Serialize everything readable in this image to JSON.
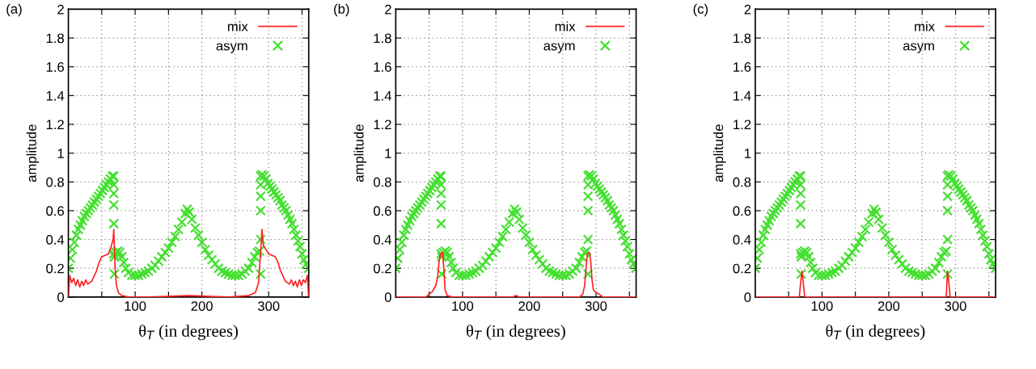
{
  "chart_data": [
    {
      "type": "line",
      "annotations": [
        "(a)"
      ],
      "xlabel": "θ$_{T}$ (in degrees)",
      "ylabel": "amplitude",
      "xlim": [
        0,
        360
      ],
      "ylim": [
        0,
        2
      ],
      "xticks": [
        {
          "value": 50,
          "label": null
        },
        100,
        {
          "value": 150,
          "label": null
        },
        200,
        {
          "value": 250,
          "label": null
        },
        300,
        {
          "value": 350,
          "label": null
        }
      ],
      "yticks": [
        0,
        0.2,
        0.4,
        0.6,
        0.8,
        1,
        1.2,
        1.4,
        1.6,
        1.8,
        2
      ],
      "grid": true,
      "legend": "top right",
      "series": [
        {
          "name": "mix",
          "color": "#ff2020",
          "line_style": "solid",
          "marker": "none",
          "x": [
            0,
            2,
            5,
            8,
            11,
            14,
            17,
            20,
            23,
            26,
            29,
            32,
            35,
            38,
            42,
            46,
            50,
            55,
            60,
            64,
            67,
            68,
            70,
            72,
            75,
            80,
            90,
            120,
            180,
            240,
            270,
            280,
            285,
            288,
            290,
            292,
            296,
            300,
            305,
            310,
            314,
            318,
            322,
            325,
            328,
            331,
            334,
            337,
            340,
            343,
            346,
            349,
            352,
            355,
            358,
            360
          ],
          "values": [
            0,
            0.15,
            0.1,
            0.13,
            0.08,
            0.12,
            0.07,
            0.11,
            0.08,
            0.12,
            0.09,
            0.1,
            0.11,
            0.14,
            0.18,
            0.24,
            0.28,
            0.29,
            0.3,
            0.35,
            0.4,
            0.47,
            0.2,
            0.08,
            0.03,
            0.01,
            0,
            0,
            0.01,
            0,
            0.01,
            0.03,
            0.1,
            0.32,
            0.47,
            0.36,
            0.33,
            0.3,
            0.29,
            0.28,
            0.24,
            0.18,
            0.14,
            0.11,
            0.1,
            0.09,
            0.12,
            0.08,
            0.11,
            0.07,
            0.12,
            0.08,
            0.12,
            0.1,
            0.15,
            0
          ]
        },
        {
          "name": "asym",
          "type": "scatter",
          "color": "#44e030",
          "marker": "cross",
          "x": [
            0,
            3,
            6,
            9,
            12,
            15,
            18,
            21,
            24,
            27,
            30,
            33,
            36,
            39,
            42,
            45,
            48,
            51,
            54,
            57,
            60,
            63,
            66,
            68,
            68,
            68,
            68,
            68,
            68,
            69,
            69,
            71,
            74,
            77,
            80,
            83,
            86,
            90,
            95,
            100,
            105,
            110,
            115,
            120,
            125,
            130,
            135,
            140,
            145,
            150,
            155,
            160,
            165,
            170,
            175,
            178,
            181,
            185,
            190,
            195,
            200,
            205,
            210,
            215,
            220,
            225,
            230,
            235,
            240,
            245,
            250,
            255,
            260,
            265,
            270,
            275,
            279,
            283,
            286,
            288,
            288,
            288,
            288,
            288,
            288,
            290,
            293,
            296,
            299,
            302,
            305,
            308,
            311,
            314,
            317,
            320,
            323,
            326,
            329,
            332,
            335,
            338,
            341,
            344,
            347,
            350,
            353,
            356,
            360
          ],
          "values": [
            0.2,
            0.27,
            0.33,
            0.38,
            0.43,
            0.47,
            0.5,
            0.53,
            0.56,
            0.58,
            0.6,
            0.62,
            0.64,
            0.66,
            0.68,
            0.7,
            0.72,
            0.74,
            0.76,
            0.78,
            0.8,
            0.82,
            0.84,
            0.84,
            0.78,
            0.72,
            0.64,
            0.51,
            0.3,
            0.16,
            0.28,
            0.31,
            0.32,
            0.31,
            0.28,
            0.24,
            0.2,
            0.17,
            0.15,
            0.15,
            0.15,
            0.16,
            0.17,
            0.18,
            0.2,
            0.22,
            0.25,
            0.28,
            0.31,
            0.34,
            0.38,
            0.42,
            0.47,
            0.52,
            0.58,
            0.61,
            0.59,
            0.54,
            0.48,
            0.43,
            0.38,
            0.33,
            0.29,
            0.26,
            0.23,
            0.2,
            0.18,
            0.17,
            0.16,
            0.15,
            0.15,
            0.15,
            0.16,
            0.18,
            0.2,
            0.24,
            0.28,
            0.31,
            0.32,
            0.16,
            0.4,
            0.6,
            0.7,
            0.78,
            0.84,
            0.85,
            0.84,
            0.82,
            0.79,
            0.77,
            0.75,
            0.73,
            0.71,
            0.69,
            0.67,
            0.64,
            0.62,
            0.6,
            0.57,
            0.54,
            0.51,
            0.47,
            0.43,
            0.39,
            0.35,
            0.3,
            0.26,
            0.23,
            0.2
          ]
        }
      ]
    },
    {
      "type": "line",
      "annotations": [
        "(b)"
      ],
      "xlabel": "θ$_{T}$ (in degrees)",
      "ylabel": "amplitude",
      "xlim": [
        0,
        360
      ],
      "ylim": [
        0,
        2
      ],
      "xticks": [
        {
          "value": 50,
          "label": null
        },
        100,
        {
          "value": 150,
          "label": null
        },
        200,
        {
          "value": 250,
          "label": null
        },
        300,
        {
          "value": 350,
          "label": null
        }
      ],
      "yticks": [
        0,
        0.2,
        0.4,
        0.6,
        0.8,
        1,
        1.2,
        1.4,
        1.6,
        1.8,
        2
      ],
      "grid": true,
      "legend": "top right",
      "series": [
        {
          "name": "mix",
          "color": "#ff2020",
          "line_style": "solid",
          "marker": "none",
          "x": [
            0,
            45,
            50,
            55,
            60,
            63,
            65,
            67,
            70,
            72,
            74,
            77,
            85,
            175,
            180,
            185,
            275,
            280,
            283,
            285,
            287,
            290,
            292,
            294,
            296,
            300,
            305,
            310,
            360
          ],
          "values": [
            0,
            0,
            0.02,
            0.04,
            0.08,
            0.15,
            0.25,
            0.3,
            0.31,
            0.2,
            0.05,
            0.01,
            0,
            0,
            0.01,
            0,
            0,
            0.02,
            0.08,
            0.2,
            0.3,
            0.31,
            0.25,
            0.12,
            0.05,
            0.03,
            0.02,
            0,
            0
          ]
        },
        {
          "name": "asym",
          "type": "scatter",
          "color": "#44e030",
          "marker": "cross",
          "x": [
            0,
            3,
            6,
            9,
            12,
            15,
            18,
            21,
            24,
            27,
            30,
            33,
            36,
            39,
            42,
            45,
            48,
            51,
            54,
            57,
            60,
            63,
            66,
            68,
            68,
            68,
            68,
            68,
            68,
            69,
            69,
            71,
            74,
            77,
            80,
            83,
            86,
            90,
            95,
            100,
            105,
            110,
            115,
            120,
            125,
            130,
            135,
            140,
            145,
            150,
            155,
            160,
            165,
            170,
            175,
            178,
            181,
            185,
            190,
            195,
            200,
            205,
            210,
            215,
            220,
            225,
            230,
            235,
            240,
            245,
            250,
            255,
            260,
            265,
            270,
            275,
            279,
            283,
            286,
            288,
            288,
            288,
            288,
            288,
            288,
            290,
            293,
            296,
            299,
            302,
            305,
            308,
            311,
            314,
            317,
            320,
            323,
            326,
            329,
            332,
            335,
            338,
            341,
            344,
            347,
            350,
            353,
            356,
            360
          ],
          "values": [
            0.2,
            0.27,
            0.33,
            0.38,
            0.43,
            0.47,
            0.5,
            0.53,
            0.56,
            0.58,
            0.6,
            0.62,
            0.64,
            0.66,
            0.68,
            0.7,
            0.72,
            0.74,
            0.76,
            0.78,
            0.8,
            0.82,
            0.84,
            0.84,
            0.78,
            0.72,
            0.64,
            0.51,
            0.3,
            0.16,
            0.28,
            0.31,
            0.32,
            0.31,
            0.28,
            0.24,
            0.2,
            0.17,
            0.15,
            0.15,
            0.15,
            0.16,
            0.17,
            0.18,
            0.2,
            0.22,
            0.25,
            0.28,
            0.31,
            0.34,
            0.38,
            0.42,
            0.47,
            0.52,
            0.58,
            0.61,
            0.59,
            0.54,
            0.48,
            0.43,
            0.38,
            0.33,
            0.29,
            0.26,
            0.23,
            0.2,
            0.18,
            0.17,
            0.16,
            0.15,
            0.15,
            0.15,
            0.16,
            0.18,
            0.2,
            0.24,
            0.28,
            0.31,
            0.32,
            0.16,
            0.4,
            0.6,
            0.7,
            0.78,
            0.84,
            0.85,
            0.84,
            0.82,
            0.79,
            0.77,
            0.75,
            0.73,
            0.71,
            0.69,
            0.67,
            0.64,
            0.62,
            0.6,
            0.57,
            0.54,
            0.51,
            0.47,
            0.43,
            0.39,
            0.35,
            0.3,
            0.26,
            0.23,
            0.2
          ]
        }
      ]
    },
    {
      "type": "line",
      "annotations": [
        "(c)"
      ],
      "xlabel": "θ$_{T}$ (in degrees)",
      "ylabel": "amplitude",
      "xlim": [
        0,
        360
      ],
      "ylim": [
        0,
        2
      ],
      "xticks": [
        {
          "value": 50,
          "label": null
        },
        100,
        {
          "value": 150,
          "label": null
        },
        200,
        {
          "value": 250,
          "label": null
        },
        300,
        {
          "value": 350,
          "label": null
        }
      ],
      "yticks": [
        0,
        0.2,
        0.4,
        0.6,
        0.8,
        1,
        1.2,
        1.4,
        1.6,
        1.8,
        2
      ],
      "grid": true,
      "legend": "top right",
      "series": [
        {
          "name": "mix",
          "color": "#ff2020",
          "line_style": "solid",
          "marker": "none",
          "x": [
            0,
            66,
            68,
            70,
            72,
            74,
            180,
            286,
            288,
            290,
            292,
            360
          ],
          "values": [
            0,
            0,
            0.1,
            0.18,
            0.1,
            0,
            0,
            0,
            0.18,
            0.1,
            0,
            0
          ]
        },
        {
          "name": "asym",
          "type": "scatter",
          "color": "#44e030",
          "marker": "cross",
          "x": [
            0,
            3,
            6,
            9,
            12,
            15,
            18,
            21,
            24,
            27,
            30,
            33,
            36,
            39,
            42,
            45,
            48,
            51,
            54,
            57,
            60,
            63,
            66,
            68,
            68,
            68,
            68,
            68,
            68,
            69,
            69,
            71,
            74,
            77,
            80,
            83,
            86,
            90,
            95,
            100,
            105,
            110,
            115,
            120,
            125,
            130,
            135,
            140,
            145,
            150,
            155,
            160,
            165,
            170,
            175,
            178,
            181,
            185,
            190,
            195,
            200,
            205,
            210,
            215,
            220,
            225,
            230,
            235,
            240,
            245,
            250,
            255,
            260,
            265,
            270,
            275,
            279,
            283,
            286,
            288,
            288,
            288,
            288,
            288,
            288,
            290,
            293,
            296,
            299,
            302,
            305,
            308,
            311,
            314,
            317,
            320,
            323,
            326,
            329,
            332,
            335,
            338,
            341,
            344,
            347,
            350,
            353,
            356,
            360
          ],
          "values": [
            0.2,
            0.27,
            0.33,
            0.38,
            0.43,
            0.47,
            0.5,
            0.53,
            0.56,
            0.58,
            0.6,
            0.62,
            0.64,
            0.66,
            0.68,
            0.7,
            0.72,
            0.74,
            0.76,
            0.78,
            0.8,
            0.82,
            0.84,
            0.84,
            0.78,
            0.72,
            0.64,
            0.51,
            0.3,
            0.16,
            0.28,
            0.31,
            0.32,
            0.31,
            0.28,
            0.24,
            0.2,
            0.17,
            0.15,
            0.15,
            0.15,
            0.16,
            0.17,
            0.18,
            0.2,
            0.22,
            0.25,
            0.28,
            0.31,
            0.34,
            0.38,
            0.42,
            0.47,
            0.52,
            0.58,
            0.61,
            0.59,
            0.54,
            0.48,
            0.43,
            0.38,
            0.33,
            0.29,
            0.26,
            0.23,
            0.2,
            0.18,
            0.17,
            0.16,
            0.15,
            0.15,
            0.15,
            0.16,
            0.18,
            0.2,
            0.24,
            0.28,
            0.31,
            0.32,
            0.16,
            0.4,
            0.6,
            0.7,
            0.78,
            0.84,
            0.85,
            0.84,
            0.82,
            0.79,
            0.77,
            0.75,
            0.73,
            0.71,
            0.69,
            0.67,
            0.64,
            0.62,
            0.6,
            0.57,
            0.54,
            0.51,
            0.47,
            0.43,
            0.39,
            0.35,
            0.3,
            0.26,
            0.23,
            0.2
          ]
        }
      ]
    }
  ]
}
